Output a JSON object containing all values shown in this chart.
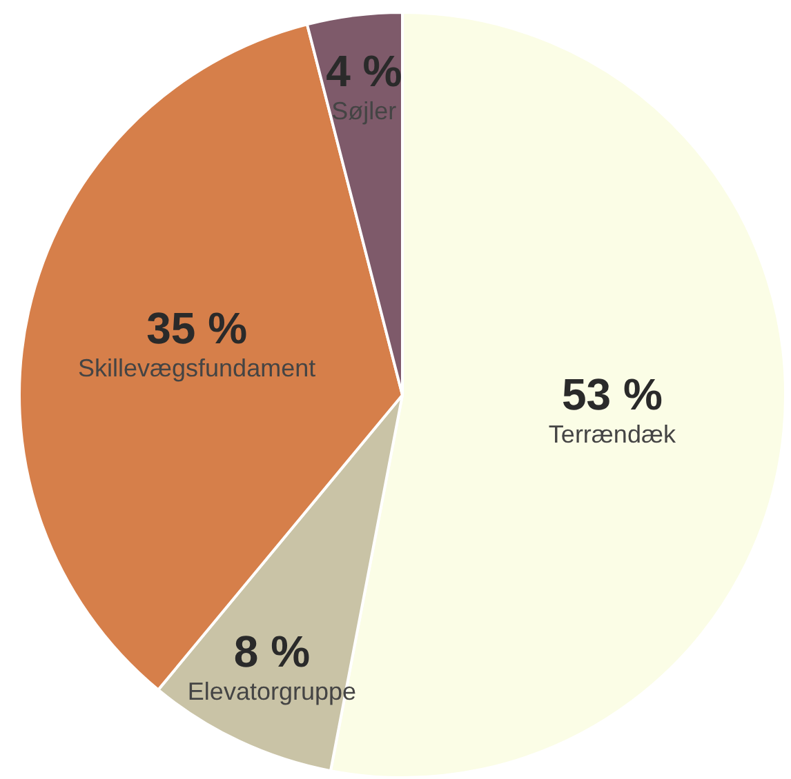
{
  "chart_data": {
    "type": "pie",
    "categories": [
      "Terrændæk",
      "Elevatorgruppe",
      "Skillevægsfundament",
      "Søjler"
    ],
    "values": [
      53,
      8,
      35,
      4
    ],
    "colors": [
      "#fbfde6",
      "#c9c3a6",
      "#d67f4a",
      "#7e5a6a"
    ],
    "value_labels": [
      "53 %",
      "8 %",
      "35 %",
      "4 %"
    ],
    "legend": false
  }
}
